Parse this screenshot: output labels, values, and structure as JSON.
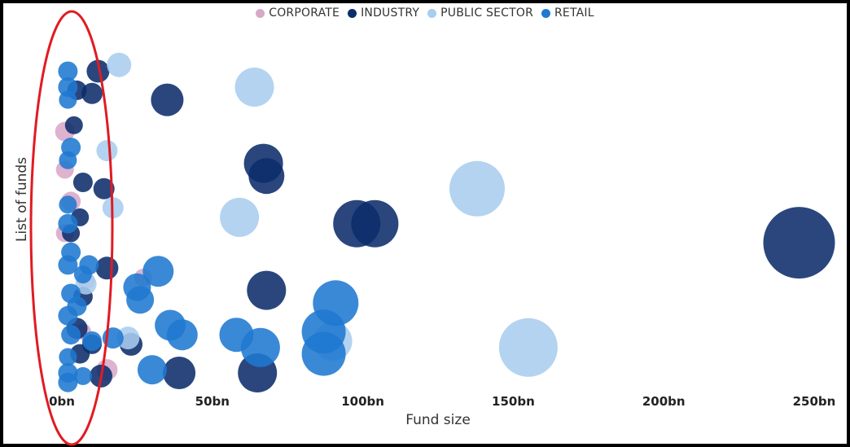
{
  "chart_data": {
    "type": "scatter",
    "title": "",
    "xlabel": "Fund size",
    "ylabel": "List of funds",
    "xlim": [
      0,
      260
    ],
    "x_ticks": [
      0,
      50,
      100,
      150,
      200,
      250
    ],
    "x_tick_labels": [
      "0bn",
      "50bn",
      "100bn",
      "150bn",
      "200bn",
      "250bn"
    ],
    "grid": false,
    "legend_position": "top-center",
    "series": [
      {
        "name": "CORPORATE",
        "color": "#d8a8c8",
        "points": [
          {
            "x": 1,
            "y": 0.24,
            "r": 12
          },
          {
            "x": 1,
            "y": 0.36,
            "r": 11
          },
          {
            "x": 3,
            "y": 0.46,
            "r": 12
          },
          {
            "x": 1,
            "y": 0.56,
            "r": 11
          },
          {
            "x": 8,
            "y": 0.71,
            "r": 11
          },
          {
            "x": 27,
            "y": 0.7,
            "r": 11
          },
          {
            "x": 7,
            "y": 0.87,
            "r": 10
          },
          {
            "x": 15,
            "y": 0.99,
            "r": 13
          }
        ]
      },
      {
        "name": "INDUSTRY",
        "color": "#0d2c6b",
        "points": [
          {
            "x": 12,
            "y": 0.05,
            "r": 14
          },
          {
            "x": 5,
            "y": 0.11,
            "r": 12
          },
          {
            "x": 10,
            "y": 0.12,
            "r": 13
          },
          {
            "x": 35,
            "y": 0.14,
            "r": 20
          },
          {
            "x": 4,
            "y": 0.22,
            "r": 11
          },
          {
            "x": 67,
            "y": 0.34,
            "r": 24
          },
          {
            "x": 68,
            "y": 0.38,
            "r": 22
          },
          {
            "x": 7,
            "y": 0.4,
            "r": 12
          },
          {
            "x": 14,
            "y": 0.42,
            "r": 13
          },
          {
            "x": 6,
            "y": 0.51,
            "r": 11
          },
          {
            "x": 98,
            "y": 0.53,
            "r": 29
          },
          {
            "x": 104,
            "y": 0.53,
            "r": 29
          },
          {
            "x": 3,
            "y": 0.56,
            "r": 11
          },
          {
            "x": 245,
            "y": 0.59,
            "r": 44
          },
          {
            "x": 15,
            "y": 0.67,
            "r": 14
          },
          {
            "x": 68,
            "y": 0.74,
            "r": 24
          },
          {
            "x": 7,
            "y": 0.76,
            "r": 12
          },
          {
            "x": 5,
            "y": 0.86,
            "r": 13
          },
          {
            "x": 10,
            "y": 0.91,
            "r": 12
          },
          {
            "x": 23,
            "y": 0.91,
            "r": 14
          },
          {
            "x": 6,
            "y": 0.94,
            "r": 12
          },
          {
            "x": 39,
            "y": 1.0,
            "r": 20
          },
          {
            "x": 65,
            "y": 1.0,
            "r": 24
          },
          {
            "x": 13,
            "y": 1.01,
            "r": 14
          }
        ]
      },
      {
        "name": "PUBLIC SECTOR",
        "color": "#a8cdee",
        "points": [
          {
            "x": 19,
            "y": 0.03,
            "r": 15
          },
          {
            "x": 64,
            "y": 0.1,
            "r": 24
          },
          {
            "x": 15,
            "y": 0.3,
            "r": 13
          },
          {
            "x": 138,
            "y": 0.42,
            "r": 34
          },
          {
            "x": 17,
            "y": 0.48,
            "r": 13
          },
          {
            "x": 59,
            "y": 0.51,
            "r": 24
          },
          {
            "x": 8,
            "y": 0.72,
            "r": 13
          },
          {
            "x": 90,
            "y": 0.9,
            "r": 24
          },
          {
            "x": 155,
            "y": 0.92,
            "r": 36
          },
          {
            "x": 22,
            "y": 0.89,
            "r": 14
          }
        ]
      },
      {
        "name": "RETAIL",
        "color": "#1f79d0",
        "points": [
          {
            "x": 2,
            "y": 0.05,
            "r": 12
          },
          {
            "x": 2,
            "y": 0.1,
            "r": 12
          },
          {
            "x": 2,
            "y": 0.14,
            "r": 11
          },
          {
            "x": 3,
            "y": 0.29,
            "r": 12
          },
          {
            "x": 2,
            "y": 0.33,
            "r": 11
          },
          {
            "x": 2,
            "y": 0.47,
            "r": 11
          },
          {
            "x": 2,
            "y": 0.53,
            "r": 12
          },
          {
            "x": 3,
            "y": 0.62,
            "r": 12
          },
          {
            "x": 2,
            "y": 0.66,
            "r": 12
          },
          {
            "x": 9,
            "y": 0.66,
            "r": 12
          },
          {
            "x": 7,
            "y": 0.69,
            "r": 11
          },
          {
            "x": 32,
            "y": 0.68,
            "r": 19
          },
          {
            "x": 25,
            "y": 0.73,
            "r": 17
          },
          {
            "x": 26,
            "y": 0.77,
            "r": 17
          },
          {
            "x": 3,
            "y": 0.75,
            "r": 12
          },
          {
            "x": 5,
            "y": 0.79,
            "r": 12
          },
          {
            "x": 2,
            "y": 0.82,
            "r": 12
          },
          {
            "x": 91,
            "y": 0.78,
            "r": 28
          },
          {
            "x": 36,
            "y": 0.85,
            "r": 19
          },
          {
            "x": 40,
            "y": 0.88,
            "r": 19
          },
          {
            "x": 58,
            "y": 0.88,
            "r": 21
          },
          {
            "x": 87,
            "y": 0.87,
            "r": 27
          },
          {
            "x": 3,
            "y": 0.88,
            "r": 12
          },
          {
            "x": 10,
            "y": 0.9,
            "r": 12
          },
          {
            "x": 17,
            "y": 0.89,
            "r": 13
          },
          {
            "x": 66,
            "y": 0.92,
            "r": 24
          },
          {
            "x": 87,
            "y": 0.94,
            "r": 27
          },
          {
            "x": 2,
            "y": 0.95,
            "r": 11
          },
          {
            "x": 30,
            "y": 0.99,
            "r": 18
          },
          {
            "x": 2,
            "y": 1.0,
            "r": 12
          },
          {
            "x": 7,
            "y": 1.01,
            "r": 11
          },
          {
            "x": 2,
            "y": 1.03,
            "r": 12
          }
        ]
      }
    ]
  },
  "annotation": {
    "shape": "ellipse",
    "color": "#e11b22"
  }
}
